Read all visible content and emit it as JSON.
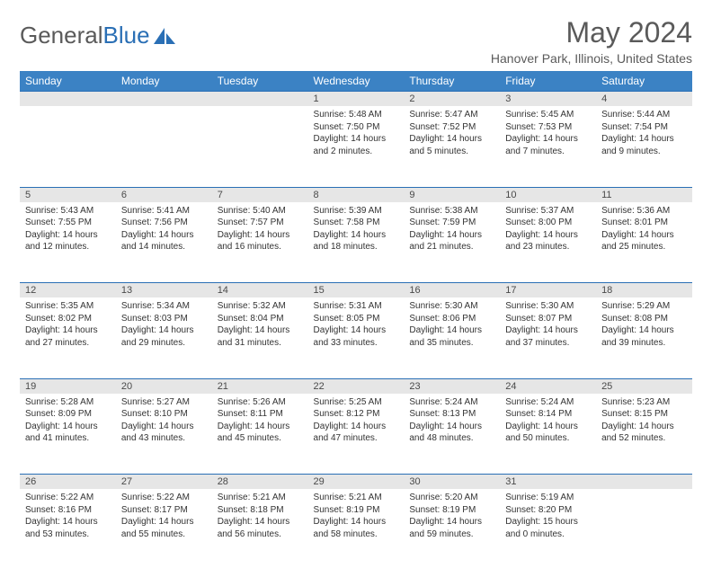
{
  "logo": {
    "text1": "General",
    "text2": "Blue"
  },
  "title": "May 2024",
  "location": "Hanover Park, Illinois, United States",
  "colors": {
    "header_bg": "#3b82c4",
    "header_fg": "#ffffff",
    "daynum_bg": "#e6e6e6",
    "daynum_border": "#2a6fb5",
    "text": "#333333",
    "title_color": "#5a5a5a"
  },
  "weekdays": [
    "Sunday",
    "Monday",
    "Tuesday",
    "Wednesday",
    "Thursday",
    "Friday",
    "Saturday"
  ],
  "weeks": [
    [
      null,
      null,
      null,
      {
        "n": "1",
        "sunrise": "5:48 AM",
        "sunset": "7:50 PM",
        "day": "14 hours and 2 minutes."
      },
      {
        "n": "2",
        "sunrise": "5:47 AM",
        "sunset": "7:52 PM",
        "day": "14 hours and 5 minutes."
      },
      {
        "n": "3",
        "sunrise": "5:45 AM",
        "sunset": "7:53 PM",
        "day": "14 hours and 7 minutes."
      },
      {
        "n": "4",
        "sunrise": "5:44 AM",
        "sunset": "7:54 PM",
        "day": "14 hours and 9 minutes."
      }
    ],
    [
      {
        "n": "5",
        "sunrise": "5:43 AM",
        "sunset": "7:55 PM",
        "day": "14 hours and 12 minutes."
      },
      {
        "n": "6",
        "sunrise": "5:41 AM",
        "sunset": "7:56 PM",
        "day": "14 hours and 14 minutes."
      },
      {
        "n": "7",
        "sunrise": "5:40 AM",
        "sunset": "7:57 PM",
        "day": "14 hours and 16 minutes."
      },
      {
        "n": "8",
        "sunrise": "5:39 AM",
        "sunset": "7:58 PM",
        "day": "14 hours and 18 minutes."
      },
      {
        "n": "9",
        "sunrise": "5:38 AM",
        "sunset": "7:59 PM",
        "day": "14 hours and 21 minutes."
      },
      {
        "n": "10",
        "sunrise": "5:37 AM",
        "sunset": "8:00 PM",
        "day": "14 hours and 23 minutes."
      },
      {
        "n": "11",
        "sunrise": "5:36 AM",
        "sunset": "8:01 PM",
        "day": "14 hours and 25 minutes."
      }
    ],
    [
      {
        "n": "12",
        "sunrise": "5:35 AM",
        "sunset": "8:02 PM",
        "day": "14 hours and 27 minutes."
      },
      {
        "n": "13",
        "sunrise": "5:34 AM",
        "sunset": "8:03 PM",
        "day": "14 hours and 29 minutes."
      },
      {
        "n": "14",
        "sunrise": "5:32 AM",
        "sunset": "8:04 PM",
        "day": "14 hours and 31 minutes."
      },
      {
        "n": "15",
        "sunrise": "5:31 AM",
        "sunset": "8:05 PM",
        "day": "14 hours and 33 minutes."
      },
      {
        "n": "16",
        "sunrise": "5:30 AM",
        "sunset": "8:06 PM",
        "day": "14 hours and 35 minutes."
      },
      {
        "n": "17",
        "sunrise": "5:30 AM",
        "sunset": "8:07 PM",
        "day": "14 hours and 37 minutes."
      },
      {
        "n": "18",
        "sunrise": "5:29 AM",
        "sunset": "8:08 PM",
        "day": "14 hours and 39 minutes."
      }
    ],
    [
      {
        "n": "19",
        "sunrise": "5:28 AM",
        "sunset": "8:09 PM",
        "day": "14 hours and 41 minutes."
      },
      {
        "n": "20",
        "sunrise": "5:27 AM",
        "sunset": "8:10 PM",
        "day": "14 hours and 43 minutes."
      },
      {
        "n": "21",
        "sunrise": "5:26 AM",
        "sunset": "8:11 PM",
        "day": "14 hours and 45 minutes."
      },
      {
        "n": "22",
        "sunrise": "5:25 AM",
        "sunset": "8:12 PM",
        "day": "14 hours and 47 minutes."
      },
      {
        "n": "23",
        "sunrise": "5:24 AM",
        "sunset": "8:13 PM",
        "day": "14 hours and 48 minutes."
      },
      {
        "n": "24",
        "sunrise": "5:24 AM",
        "sunset": "8:14 PM",
        "day": "14 hours and 50 minutes."
      },
      {
        "n": "25",
        "sunrise": "5:23 AM",
        "sunset": "8:15 PM",
        "day": "14 hours and 52 minutes."
      }
    ],
    [
      {
        "n": "26",
        "sunrise": "5:22 AM",
        "sunset": "8:16 PM",
        "day": "14 hours and 53 minutes."
      },
      {
        "n": "27",
        "sunrise": "5:22 AM",
        "sunset": "8:17 PM",
        "day": "14 hours and 55 minutes."
      },
      {
        "n": "28",
        "sunrise": "5:21 AM",
        "sunset": "8:18 PM",
        "day": "14 hours and 56 minutes."
      },
      {
        "n": "29",
        "sunrise": "5:21 AM",
        "sunset": "8:19 PM",
        "day": "14 hours and 58 minutes."
      },
      {
        "n": "30",
        "sunrise": "5:20 AM",
        "sunset": "8:19 PM",
        "day": "14 hours and 59 minutes."
      },
      {
        "n": "31",
        "sunrise": "5:19 AM",
        "sunset": "8:20 PM",
        "day": "15 hours and 0 minutes."
      },
      null
    ]
  ],
  "labels": {
    "sunrise": "Sunrise:",
    "sunset": "Sunset:",
    "daylight": "Daylight:"
  }
}
